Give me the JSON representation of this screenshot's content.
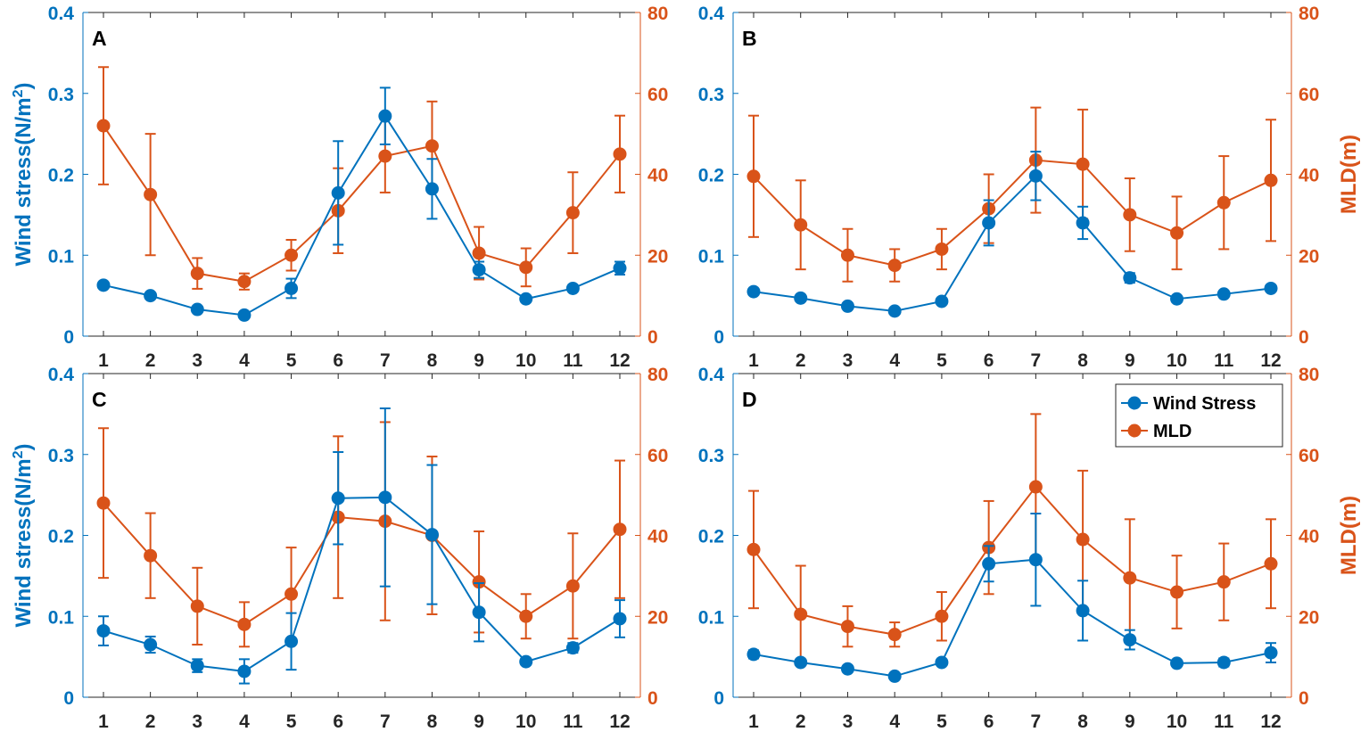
{
  "colors": {
    "wind": "#0072BD",
    "mld": "#D95319",
    "axis": "#262626"
  },
  "chart_data": [
    {
      "type": "line",
      "panel": "A",
      "categories": [
        "1",
        "2",
        "3",
        "4",
        "5",
        "6",
        "7",
        "8",
        "9",
        "10",
        "11",
        "12"
      ],
      "ylabel": "Wind stress(N/m2)",
      "y2label": "",
      "ylim": [
        0,
        0.4
      ],
      "y2lim": [
        0,
        80
      ],
      "yticks": [
        "0",
        "0.1",
        "0.2",
        "0.3",
        "0.4"
      ],
      "y2ticks": [
        "0",
        "20",
        "40",
        "60",
        "80"
      ],
      "series": [
        {
          "name": "Wind Stress",
          "axis": "left",
          "values": [
            0.063,
            0.05,
            0.033,
            0.026,
            0.059,
            0.177,
            0.272,
            0.182,
            0.082,
            0.046,
            0.059,
            0.084
          ],
          "err": [
            0.003,
            0.003,
            0.003,
            0.002,
            0.012,
            0.064,
            0.035,
            0.037,
            0.01,
            0.003,
            0.004,
            0.008
          ]
        },
        {
          "name": "MLD",
          "axis": "right",
          "values": [
            52,
            35,
            15.5,
            13.5,
            20,
            31,
            44.5,
            47,
            20.5,
            17,
            30.5,
            45
          ],
          "err": [
            14.5,
            15,
            3.8,
            2,
            3.8,
            10.5,
            9,
            11,
            6.5,
            4.7,
            10,
            9.5
          ]
        }
      ]
    },
    {
      "type": "line",
      "panel": "B",
      "categories": [
        "1",
        "2",
        "3",
        "4",
        "5",
        "6",
        "7",
        "8",
        "9",
        "10",
        "11",
        "12"
      ],
      "ylabel": "",
      "y2label": "MLD(m)",
      "ylim": [
        0,
        0.4
      ],
      "y2lim": [
        0,
        80
      ],
      "yticks": [
        "0",
        "0.1",
        "0.2",
        "0.3",
        "0.4"
      ],
      "y2ticks": [
        "0",
        "20",
        "40",
        "60",
        "80"
      ],
      "series": [
        {
          "name": "Wind Stress",
          "axis": "left",
          "values": [
            0.055,
            0.047,
            0.037,
            0.031,
            0.043,
            0.14,
            0.198,
            0.14,
            0.072,
            0.046,
            0.052,
            0.059
          ],
          "err": [
            0.002,
            0.002,
            0.002,
            0.002,
            0.003,
            0.028,
            0.03,
            0.02,
            0.006,
            0.003,
            0.003,
            0.003
          ]
        },
        {
          "name": "MLD",
          "axis": "right",
          "values": [
            39.5,
            27.5,
            20,
            17.5,
            21.5,
            31.5,
            43.5,
            42.5,
            30,
            25.5,
            33,
            38.5
          ],
          "err": [
            15,
            11,
            6.5,
            4,
            5,
            8.5,
            13,
            13.5,
            9,
            9,
            11.5,
            15
          ]
        }
      ]
    },
    {
      "type": "line",
      "panel": "C",
      "categories": [
        "1",
        "2",
        "3",
        "4",
        "5",
        "6",
        "7",
        "8",
        "9",
        "10",
        "11",
        "12"
      ],
      "ylabel": "Wind stress(N/m2)",
      "y2label": "",
      "ylim": [
        0,
        0.4
      ],
      "y2lim": [
        0,
        80
      ],
      "yticks": [
        "0",
        "0.1",
        "0.2",
        "0.3",
        "0.4"
      ],
      "y2ticks": [
        "0",
        "20",
        "40",
        "60",
        "80"
      ],
      "series": [
        {
          "name": "Wind Stress",
          "axis": "left",
          "values": [
            0.082,
            0.065,
            0.039,
            0.032,
            0.069,
            0.246,
            0.247,
            0.201,
            0.105,
            0.044,
            0.061,
            0.097
          ],
          "err": [
            0.018,
            0.01,
            0.008,
            0.015,
            0.035,
            0.057,
            0.11,
            0.086,
            0.036,
            0.003,
            0.006,
            0.023
          ]
        },
        {
          "name": "MLD",
          "axis": "right",
          "values": [
            48,
            35,
            22.5,
            18,
            25.5,
            44.5,
            43.5,
            40,
            28.5,
            20,
            27.5,
            41.5
          ],
          "err": [
            18.5,
            10.5,
            9.5,
            5.5,
            11.5,
            20,
            24.5,
            19.5,
            12.5,
            5.5,
            13,
            17
          ]
        }
      ]
    },
    {
      "type": "line",
      "panel": "D",
      "categories": [
        "1",
        "2",
        "3",
        "4",
        "5",
        "6",
        "7",
        "8",
        "9",
        "10",
        "11",
        "12"
      ],
      "ylabel": "",
      "y2label": "MLD(m)",
      "ylim": [
        0,
        0.4
      ],
      "y2lim": [
        0,
        80
      ],
      "yticks": [
        "0",
        "0.1",
        "0.2",
        "0.3",
        "0.4"
      ],
      "y2ticks": [
        "0",
        "20",
        "40",
        "60",
        "80"
      ],
      "legend": {
        "position": "top-right",
        "entries": [
          "Wind Stress",
          "MLD"
        ]
      },
      "series": [
        {
          "name": "Wind Stress",
          "axis": "left",
          "values": [
            0.053,
            0.043,
            0.035,
            0.026,
            0.043,
            0.165,
            0.17,
            0.107,
            0.071,
            0.042,
            0.043,
            0.055
          ],
          "err": [
            0.005,
            0.003,
            0.002,
            0.002,
            0.003,
            0.022,
            0.057,
            0.037,
            0.012,
            0.003,
            0.005,
            0.012
          ]
        },
        {
          "name": "MLD",
          "axis": "right",
          "values": [
            36.5,
            20.5,
            17.5,
            15.5,
            20,
            37,
            52,
            39,
            29.5,
            26,
            28.5,
            33
          ],
          "err": [
            14.5,
            12,
            5,
            3,
            6,
            11.5,
            18,
            17,
            14.5,
            9,
            9.5,
            11
          ]
        }
      ]
    }
  ]
}
